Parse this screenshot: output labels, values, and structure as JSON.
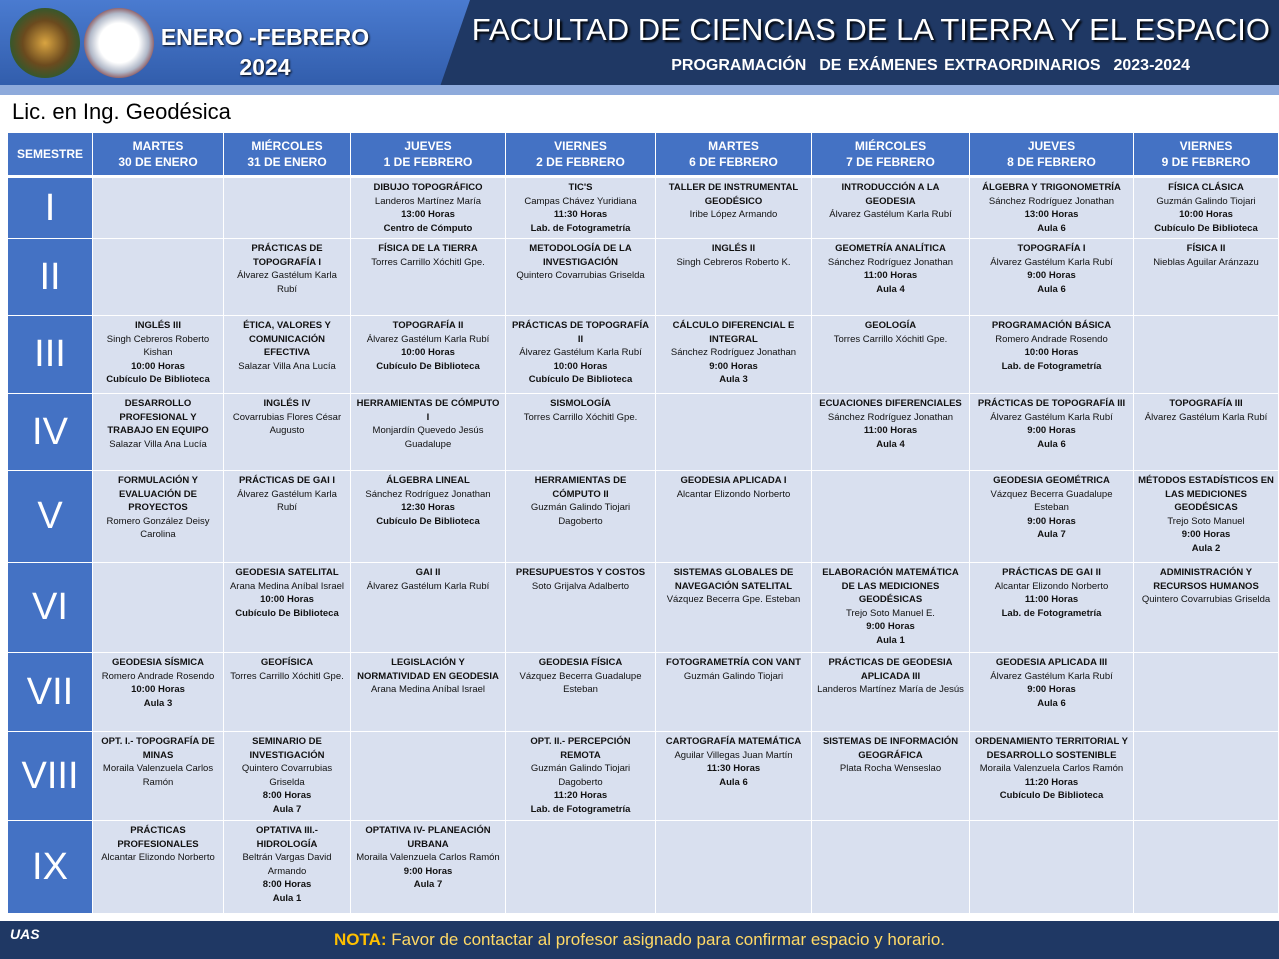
{
  "header": {
    "period": "ENERO -FEBRERO",
    "year": "2024",
    "title": "FACULTAD DE CIENCIAS DE LA TIERRA Y EL ESPACIO",
    "subtitle": "PROGRAMACIÓN  DE EXÁMENES EXTRAORDINARIOS  2023-2024"
  },
  "program": "Lic. en Ing. Geodésica",
  "table": {
    "first_column": "SEMESTRE",
    "days": [
      {
        "weekday": "MARTES",
        "date": "30 DE ENERO"
      },
      {
        "weekday": "MIÉRCOLES",
        "date": "31 DE ENERO"
      },
      {
        "weekday": "JUEVES",
        "date": "1 DE FEBRERO"
      },
      {
        "weekday": "VIERNES",
        "date": "2 DE FEBRERO"
      },
      {
        "weekday": "MARTES",
        "date": "6 DE FEBRERO"
      },
      {
        "weekday": "MIÉRCOLES",
        "date": "7 DE FEBRERO"
      },
      {
        "weekday": "JUEVES",
        "date": "8 DE FEBRERO"
      },
      {
        "weekday": "VIERNES",
        "date": "9 DE FEBRERO"
      }
    ],
    "rows": [
      {
        "semester": "I",
        "cells": [
          null,
          null,
          {
            "course": "DIBUJO TOPOGRÁFICO",
            "teacher": "Landeros Martínez María",
            "time": "13:00 Horas",
            "room": "Centro de Cómputo"
          },
          {
            "course": "TIC'S",
            "teacher": "Campas Chávez Yuridiana",
            "time": "11:30 Horas",
            "room": "Lab. de Fotogrametría"
          },
          {
            "course": "TALLER DE INSTRUMENTAL GEODÉSICO",
            "teacher": "Iribe López Armando"
          },
          {
            "course": "INTRODUCCIÓN A LA GEODESIA",
            "teacher": "Álvarez Gastélum Karla Rubí"
          },
          {
            "course": "ÁLGEBRA Y TRIGONOMETRÍA",
            "teacher": "Sánchez Rodríguez Jonathan",
            "time": "13:00 Horas",
            "room": "Aula 6"
          },
          {
            "course": "FÍSICA CLÁSICA",
            "teacher": "Guzmán Galindo Tiojari",
            "time": "10:00 Horas",
            "room": "Cubículo De Biblioteca"
          }
        ]
      },
      {
        "semester": "II",
        "cells": [
          null,
          {
            "course": "PRÁCTICAS DE TOPOGRAFÍA I",
            "teacher": "Álvarez Gastélum Karla Rubí"
          },
          {
            "course": "FÍSICA DE LA TIERRA",
            "teacher": "Torres Carrillo Xóchitl Gpe."
          },
          {
            "course": "METODOLOGÍA DE LA INVESTIGACIÓN",
            "teacher": "Quintero Covarrubias Griselda"
          },
          {
            "course": "INGLÉS II",
            "teacher": "Singh Cebreros Roberto K."
          },
          {
            "course": "GEOMETRÍA ANALÍTICA",
            "teacher": "Sánchez Rodríguez Jonathan",
            "time": "11:00 Horas",
            "room": "Aula 4"
          },
          {
            "course": "TOPOGRAFÍA I",
            "teacher": "Álvarez Gastélum Karla Rubí",
            "time": "9:00 Horas",
            "room": "Aula 6"
          },
          {
            "course": "FÍSICA II",
            "teacher": "Nieblas Aguilar Aránzazu"
          }
        ]
      },
      {
        "semester": "III",
        "cells": [
          {
            "course": "INGLÉS III",
            "teacher": "Singh Cebreros Roberto Kishan",
            "time": "10:00 Horas",
            "room": "Cubículo De Biblioteca"
          },
          {
            "course": "ÉTICA, VALORES Y COMUNICACIÓN EFECTIVA",
            "teacher": "Salazar Villa Ana Lucía"
          },
          {
            "course": "TOPOGRAFÍA II",
            "teacher": "Álvarez Gastélum Karla Rubí",
            "time": "10:00 Horas",
            "room": "Cubículo De Biblioteca"
          },
          {
            "course": "PRÁCTICAS DE TOPOGRAFÍA II",
            "teacher": "Álvarez Gastélum Karla Rubí",
            "time": "10:00 Horas",
            "room": "Cubículo De Biblioteca"
          },
          {
            "course": "CÁLCULO DIFERENCIAL E INTEGRAL",
            "teacher": "Sánchez Rodríguez Jonathan",
            "time": "9:00 Horas",
            "room": "Aula 3"
          },
          {
            "course": "GEOLOGÍA",
            "teacher": "Torres Carrillo Xóchitl Gpe."
          },
          {
            "course": "PROGRAMACIÓN BÁSICA",
            "teacher": "Romero Andrade Rosendo",
            "time": "10:00 Horas",
            "room": "Lab. de Fotogrametría"
          },
          null
        ]
      },
      {
        "semester": "IV",
        "cells": [
          {
            "course": "DESARROLLO PROFESIONAL Y TRABAJO EN EQUIPO",
            "teacher": "Salazar Villa Ana Lucía"
          },
          {
            "course": "INGLÉS IV",
            "teacher": "Covarrubias Flores César Augusto"
          },
          {
            "course": "HERRAMIENTAS DE CÓMPUTO I",
            "teacher": "Monjardín Quevedo Jesús Guadalupe"
          },
          {
            "course": "SISMOLOGÍA",
            "teacher": "Torres Carrillo Xóchitl Gpe."
          },
          null,
          {
            "course": "ECUACIONES DIFERENCIALES",
            "teacher": "Sánchez Rodríguez Jonathan",
            "time": "11:00 Horas",
            "room": "Aula 4"
          },
          {
            "course": "PRÁCTICAS DE TOPOGRAFÍA III",
            "teacher": "Álvarez Gastélum Karla Rubí",
            "time": "9:00 Horas",
            "room": "Aula 6"
          },
          {
            "course": "TOPOGRAFÍA III",
            "teacher": "Álvarez Gastélum Karla Rubí"
          }
        ]
      },
      {
        "semester": "V",
        "cells": [
          {
            "course": "FORMULACIÓN Y EVALUACIÓN DE PROYECTOS",
            "teacher": "Romero González Deisy Carolina"
          },
          {
            "course": "PRÁCTICAS DE GAI I",
            "teacher": "Álvarez Gastélum Karla Rubí"
          },
          {
            "course": "ÁLGEBRA LINEAL",
            "teacher": "Sánchez Rodríguez Jonathan",
            "time": "12:30 Horas",
            "room": "Cubículo De Biblioteca"
          },
          {
            "course": "HERRAMIENTAS DE CÓMPUTO II",
            "teacher": "Guzmán Galindo Tiojari Dagoberto"
          },
          {
            "course": "GEODESIA APLICADA I",
            "teacher": "Alcantar Elizondo Norberto"
          },
          null,
          {
            "course": "GEODESIA GEOMÉTRICA",
            "teacher": "Vázquez Becerra Guadalupe Esteban",
            "time": "9:00 Horas",
            "room": "Aula 7"
          },
          {
            "course": "MÉTODOS ESTADÍSTICOS EN LAS MEDICIONES GEODÉSICAS",
            "teacher": "Trejo Soto Manuel",
            "time": "9:00 Horas",
            "room": "Aula 2"
          }
        ]
      },
      {
        "semester": "VI",
        "cells": [
          null,
          {
            "course": "GEODESIA SATELITAL",
            "teacher": "Arana Medina Aníbal Israel",
            "time": "10:00 Horas",
            "room": "Cubículo De Biblioteca"
          },
          {
            "course": "GAI II",
            "teacher": "Álvarez Gastélum Karla Rubí"
          },
          {
            "course": "PRESUPUESTOS  Y COSTOS",
            "teacher": "Soto Grijalva Adalberto"
          },
          {
            "course": "SISTEMAS GLOBALES DE NAVEGACIÓN SATELITAL",
            "teacher": "Vázquez Becerra Gpe. Esteban"
          },
          {
            "course": "ELABORACIÓN MATEMÁTICA DE LAS MEDICIONES GEODÉSICAS",
            "teacher": "Trejo Soto Manuel E.",
            "time": "9:00 Horas",
            "room": "Aula 1"
          },
          {
            "course": "PRÁCTICAS DE GAI II",
            "teacher": "Alcantar Elizondo Norberto",
            "time": "11:00 Horas",
            "room": "Lab. de Fotogrametría"
          },
          {
            "course": "ADMINISTRACIÓN Y RECURSOS HUMANOS",
            "teacher": "Quintero Covarrubias Griselda"
          }
        ]
      },
      {
        "semester": "VII",
        "cells": [
          {
            "course": "GEODESIA SÍSMICA",
            "teacher": "Romero Andrade Rosendo",
            "time": "10:00 Horas",
            "room": "Aula 3"
          },
          {
            "course": "GEOFÍSICA",
            "teacher": "Torres Carrillo Xóchitl Gpe."
          },
          {
            "course": "LEGISLACIÓN Y NORMATIVIDAD EN GEODESIA",
            "teacher": "Arana Medina Aníbal Israel"
          },
          {
            "course": "GEODESIA FÍSICA",
            "teacher": "Vázquez Becerra Guadalupe Esteban"
          },
          {
            "course": "FOTOGRAMETRÍA CON VANT",
            "teacher": "Guzmán Galindo Tiojari"
          },
          {
            "course": "PRÁCTICAS DE GEODESIA APLICADA III",
            "teacher": "Landeros Martínez María de Jesús"
          },
          {
            "course": "GEODESIA APLICADA III",
            "teacher": "Álvarez Gastélum Karla Rubí",
            "time": "9:00 Horas",
            "room": "Aula 6"
          },
          null
        ]
      },
      {
        "semester": "VIII",
        "cells": [
          {
            "course": "OPT. I.- TOPOGRAFÍA DE MINAS",
            "teacher": "Moraila Valenzuela Carlos Ramón"
          },
          {
            "course": "SEMINARIO DE INVESTIGACIÓN",
            "teacher": "Quintero Covarrubias Griselda",
            "time": "8:00 Horas",
            "room": "Aula 7"
          },
          null,
          {
            "course": "OPT. II.- PERCEPCIÓN REMOTA",
            "teacher": "Guzmán Galindo Tiojari Dagoberto",
            "time": "11:20 Horas",
            "room": "Lab. de Fotogrametría"
          },
          {
            "course": "CARTOGRAFÍA MATEMÁTICA",
            "teacher": "Aguilar Villegas Juan Martín",
            "time": "11:30 Horas",
            "room": "Aula 6"
          },
          {
            "course": "SISTEMAS DE INFORMACIÓN GEOGRÁFICA",
            "teacher": "Plata Rocha Wenseslao"
          },
          {
            "course": "ORDENAMIENTO TERRITORIAL Y DESARROLLO SOSTENIBLE",
            "teacher": "Moraila Valenzuela Carlos Ramón",
            "time": "11:20 Horas",
            "room": "Cubículo De Biblioteca"
          },
          null
        ]
      },
      {
        "semester": "IX",
        "cells": [
          {
            "course": "PRÁCTICAS PROFESIONALES",
            "teacher": "Alcantar Elizondo Norberto"
          },
          {
            "course": "OPTATIVA III.- HIDROLOGÍA",
            "teacher": "Beltrán Vargas David Armando",
            "time": "8:00 Horas",
            "room": "Aula 1"
          },
          {
            "course": "OPTATIVA IV- PLANEACIÓN URBANA",
            "teacher": "Moraila Valenzuela Carlos Ramón",
            "time": "9:00 Horas",
            "room": "Aula 7"
          },
          null,
          null,
          null,
          null,
          null
        ]
      }
    ]
  },
  "footer": {
    "logo": "UAS",
    "note_label": "NOTA:",
    "note": "Favor de contactar al profesor asignado para confirmar espacio y horario."
  }
}
